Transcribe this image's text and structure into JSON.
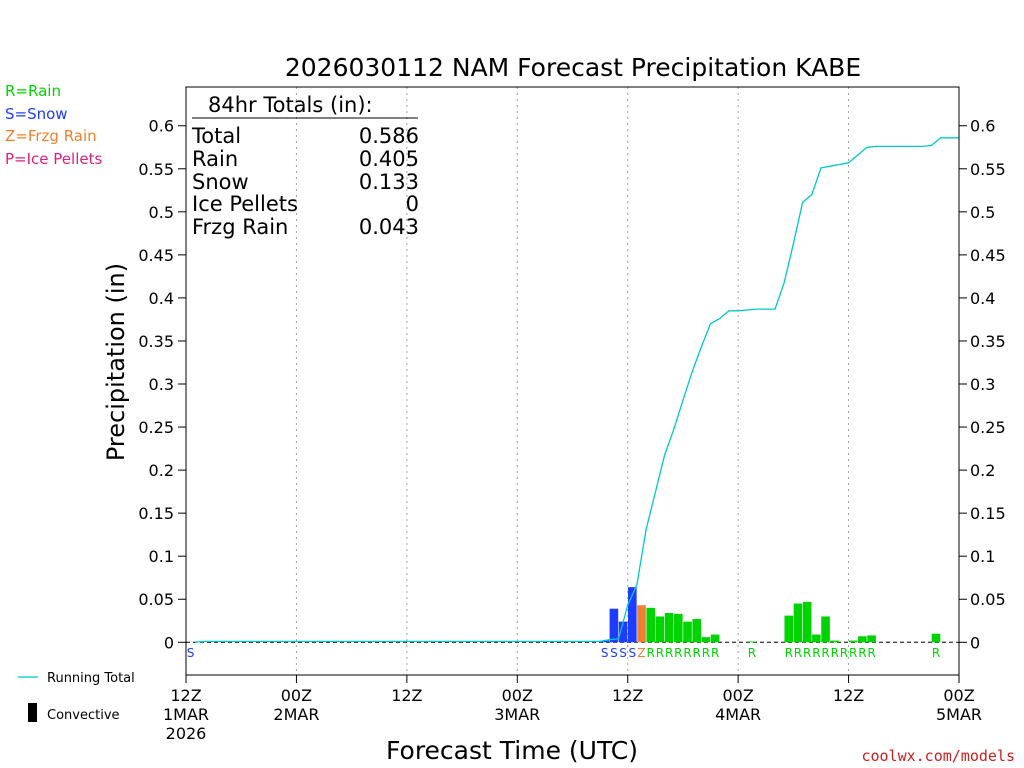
{
  "title": "2026030112 NAM Forecast Precipitation KABE",
  "colors": {
    "rain": "#00d400",
    "snow": "#1e3cff",
    "freezing_rain": "#f08030",
    "ice_pellets": "#e0207a",
    "running_total": "#00c8c8",
    "grid": "#a0a0a0",
    "text": "#000000",
    "credit": "#cc2020"
  },
  "legend_top": [
    {
      "label": "R=Rain",
      "color": "#00d400"
    },
    {
      "label": "S=Snow",
      "color": "#1e3cff"
    },
    {
      "label": "Z=Frzg Rain",
      "color": "#f08030"
    },
    {
      "label": "P=Ice Pellets",
      "color": "#e0207a"
    }
  ],
  "legend_bottom": [
    {
      "label": "Running Total",
      "kind": "line"
    },
    {
      "label": "Convective",
      "kind": "box"
    }
  ],
  "totals": {
    "header": "84hr Totals (in):",
    "rows": [
      {
        "label": "Total",
        "value": "0.586"
      },
      {
        "label": "Rain",
        "value": "0.405"
      },
      {
        "label": "Snow",
        "value": "0.133"
      },
      {
        "label": "Ice Pellets",
        "value": "0"
      },
      {
        "label": "Frzg Rain",
        "value": "0.043"
      }
    ]
  },
  "credit": "coolwx.com/models",
  "chart_data": {
    "type": "bar",
    "xlabel": "Forecast Time (UTC)",
    "ylabel": "Precipitation (in)",
    "ylim": [
      -0.038,
      0.645
    ],
    "xlim": [
      0,
      84
    ],
    "yticks": [
      0,
      0.05,
      0.1,
      0.15,
      0.2,
      0.25,
      0.3,
      0.35,
      0.4,
      0.45,
      0.5,
      0.55,
      0.6
    ],
    "ytick_labels": [
      "0",
      "0.05",
      "0.1",
      "0.15",
      "0.2",
      "0.25",
      "0.3",
      "0.35",
      "0.4",
      "0.45",
      "0.5",
      "0.55",
      "0.6"
    ],
    "grid": true,
    "xticks": [
      {
        "hour": 0,
        "lines": [
          "12Z",
          "1MAR",
          "2026"
        ]
      },
      {
        "hour": 12,
        "lines": [
          "00Z",
          "2MAR"
        ]
      },
      {
        "hour": 24,
        "lines": [
          "12Z"
        ]
      },
      {
        "hour": 36,
        "lines": [
          "00Z",
          "3MAR"
        ]
      },
      {
        "hour": 48,
        "lines": [
          "12Z"
        ]
      },
      {
        "hour": 60,
        "lines": [
          "00Z",
          "4MAR"
        ]
      },
      {
        "hour": 72,
        "lines": [
          "12Z"
        ]
      },
      {
        "hour": 84,
        "lines": [
          "00Z",
          "5MAR"
        ]
      }
    ],
    "bars": [
      {
        "hour": 46,
        "value": 0.002,
        "type": "S"
      },
      {
        "hour": 47,
        "value": 0.039,
        "type": "S"
      },
      {
        "hour": 48,
        "value": 0.024,
        "type": "S"
      },
      {
        "hour": 49,
        "value": 0.064,
        "type": "S"
      },
      {
        "hour": 50,
        "value": 0.043,
        "type": "Z"
      },
      {
        "hour": 51,
        "value": 0.04,
        "type": "R"
      },
      {
        "hour": 52,
        "value": 0.03,
        "type": "R"
      },
      {
        "hour": 53,
        "value": 0.034,
        "type": "R"
      },
      {
        "hour": 54,
        "value": 0.033,
        "type": "R"
      },
      {
        "hour": 55,
        "value": 0.024,
        "type": "R"
      },
      {
        "hour": 56,
        "value": 0.027,
        "type": "R"
      },
      {
        "hour": 57,
        "value": 0.006,
        "type": "R"
      },
      {
        "hour": 58,
        "value": 0.009,
        "type": "R"
      },
      {
        "hour": 62,
        "value": 0.001,
        "type": "R"
      },
      {
        "hour": 66,
        "value": 0.031,
        "type": "R"
      },
      {
        "hour": 67,
        "value": 0.045,
        "type": "R"
      },
      {
        "hour": 68,
        "value": 0.047,
        "type": "R"
      },
      {
        "hour": 69,
        "value": 0.009,
        "type": "R"
      },
      {
        "hour": 70,
        "value": 0.03,
        "type": "R"
      },
      {
        "hour": 71,
        "value": 0.002,
        "type": "R"
      },
      {
        "hour": 73,
        "value": 0.002,
        "type": "R"
      },
      {
        "hour": 74,
        "value": 0.007,
        "type": "R"
      },
      {
        "hour": 75,
        "value": 0.008,
        "type": "R"
      },
      {
        "hour": 82,
        "value": 0.01,
        "type": "R"
      }
    ],
    "type_labels": [
      {
        "hour": 1,
        "text": "S"
      },
      {
        "hour": 46,
        "text": "S"
      },
      {
        "hour": 47,
        "text": "S"
      },
      {
        "hour": 48,
        "text": "S"
      },
      {
        "hour": 49,
        "text": "S"
      },
      {
        "hour": 50,
        "text": "Z"
      },
      {
        "hour": 51,
        "text": "R"
      },
      {
        "hour": 52,
        "text": "R"
      },
      {
        "hour": 53,
        "text": "R"
      },
      {
        "hour": 54,
        "text": "R"
      },
      {
        "hour": 55,
        "text": "R"
      },
      {
        "hour": 56,
        "text": "R"
      },
      {
        "hour": 57,
        "text": "R"
      },
      {
        "hour": 58,
        "text": "R"
      },
      {
        "hour": 62,
        "text": "R"
      },
      {
        "hour": 66,
        "text": "R"
      },
      {
        "hour": 67,
        "text": "R"
      },
      {
        "hour": 68,
        "text": "R"
      },
      {
        "hour": 69,
        "text": "R"
      },
      {
        "hour": 70,
        "text": "R"
      },
      {
        "hour": 71,
        "text": "R"
      },
      {
        "hour": 72,
        "text": "R"
      },
      {
        "hour": 73,
        "text": "R"
      },
      {
        "hour": 74,
        "text": "R"
      },
      {
        "hour": 75,
        "text": "R"
      },
      {
        "hour": 82,
        "text": "R"
      }
    ],
    "running_total": {
      "hours": [
        1,
        2,
        45,
        46,
        47,
        48,
        49,
        50,
        51,
        52,
        53,
        54,
        55,
        56,
        57,
        58,
        59,
        60,
        61,
        62,
        63,
        64,
        65,
        66,
        67,
        68,
        69,
        70,
        71,
        72,
        73,
        74,
        75,
        76,
        77,
        78,
        79,
        80,
        81,
        82,
        83,
        84
      ],
      "values": [
        0,
        0.001,
        0.001,
        0.003,
        0.004,
        0.043,
        0.067,
        0.131,
        0.174,
        0.217,
        0.247,
        0.281,
        0.314,
        0.343,
        0.37,
        0.376,
        0.385,
        0.385,
        0.386,
        0.387,
        0.387,
        0.387,
        0.418,
        0.463,
        0.511,
        0.52,
        0.551,
        0.553,
        0.555,
        0.557,
        0.566,
        0.575,
        0.576,
        0.576,
        0.576,
        0.576,
        0.576,
        0.576,
        0.577,
        0.586,
        0.586,
        0.586
      ]
    }
  }
}
